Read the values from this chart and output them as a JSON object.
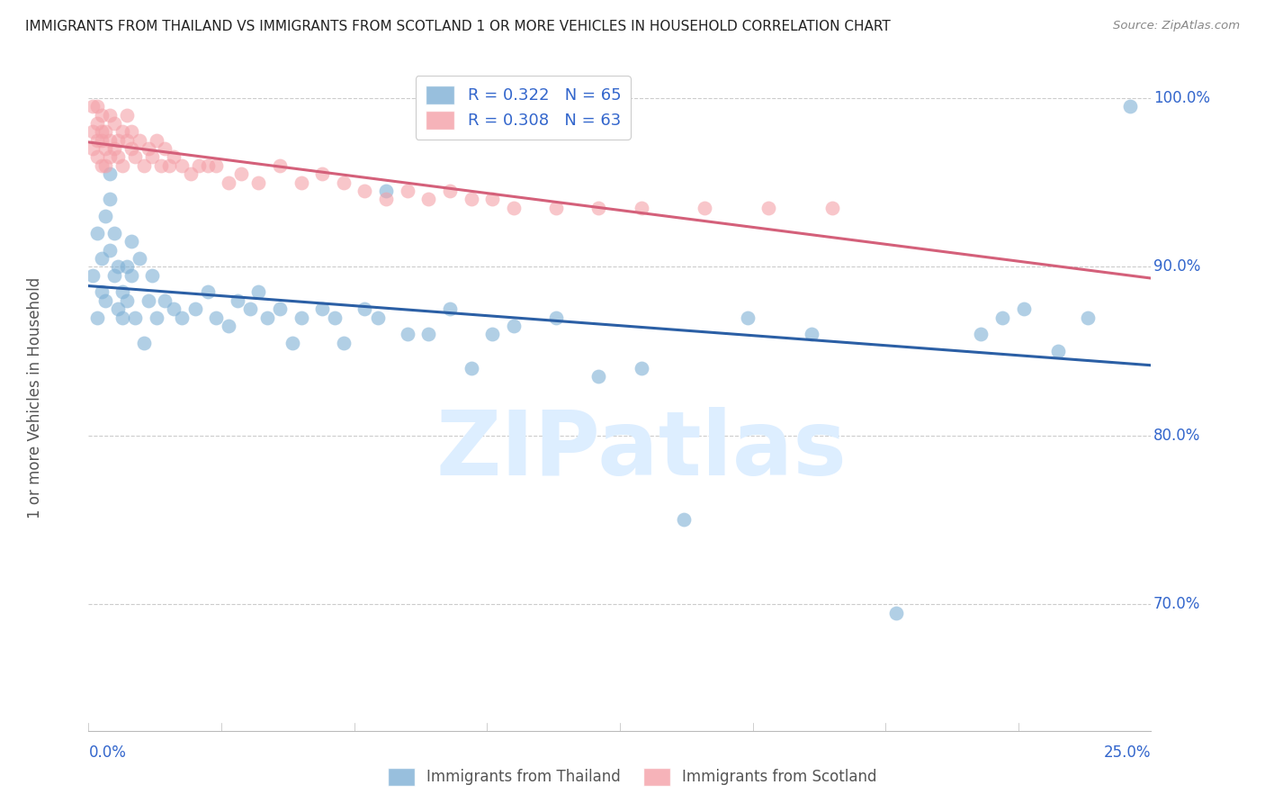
{
  "title": "IMMIGRANTS FROM THAILAND VS IMMIGRANTS FROM SCOTLAND 1 OR MORE VEHICLES IN HOUSEHOLD CORRELATION CHART",
  "source": "Source: ZipAtlas.com",
  "ylabel": "1 or more Vehicles in Household",
  "legend_thailand": "Immigrants from Thailand",
  "legend_scotland": "Immigrants from Scotland",
  "R_thailand": 0.322,
  "N_thailand": 65,
  "R_scotland": 0.308,
  "N_scotland": 63,
  "color_thailand": "#7EB0D5",
  "color_scotland": "#F4A0A8",
  "color_trend_thailand": "#2B5FA5",
  "color_trend_scotland": "#D4607A",
  "color_axis_labels": "#3366CC",
  "color_grid": "#CCCCCC",
  "watermark_color": "#DDEEFF",
  "xlim": [
    0.0,
    0.25
  ],
  "ylim": [
    0.625,
    1.02
  ],
  "yticks": [
    0.7,
    0.8,
    0.9,
    1.0
  ],
  "ytick_labels": [
    "70.0%",
    "80.0%",
    "90.0%",
    "100.0%"
  ],
  "th_x": [
    0.001,
    0.002,
    0.002,
    0.003,
    0.003,
    0.004,
    0.004,
    0.005,
    0.005,
    0.005,
    0.006,
    0.006,
    0.007,
    0.007,
    0.008,
    0.008,
    0.009,
    0.009,
    0.01,
    0.01,
    0.011,
    0.012,
    0.013,
    0.014,
    0.015,
    0.016,
    0.018,
    0.02,
    0.022,
    0.025,
    0.028,
    0.03,
    0.033,
    0.035,
    0.038,
    0.04,
    0.042,
    0.045,
    0.048,
    0.05,
    0.055,
    0.058,
    0.06,
    0.065,
    0.068,
    0.07,
    0.075,
    0.08,
    0.085,
    0.09,
    0.095,
    0.1,
    0.11,
    0.12,
    0.13,
    0.14,
    0.155,
    0.17,
    0.19,
    0.21,
    0.215,
    0.22,
    0.228,
    0.235,
    0.245
  ],
  "th_y": [
    0.895,
    0.92,
    0.87,
    0.905,
    0.885,
    0.93,
    0.88,
    0.955,
    0.94,
    0.91,
    0.92,
    0.895,
    0.875,
    0.9,
    0.885,
    0.87,
    0.9,
    0.88,
    0.895,
    0.915,
    0.87,
    0.905,
    0.855,
    0.88,
    0.895,
    0.87,
    0.88,
    0.875,
    0.87,
    0.875,
    0.885,
    0.87,
    0.865,
    0.88,
    0.875,
    0.885,
    0.87,
    0.875,
    0.855,
    0.87,
    0.875,
    0.87,
    0.855,
    0.875,
    0.87,
    0.945,
    0.86,
    0.86,
    0.875,
    0.84,
    0.86,
    0.865,
    0.87,
    0.835,
    0.84,
    0.75,
    0.87,
    0.86,
    0.695,
    0.86,
    0.87,
    0.875,
    0.85,
    0.87,
    0.995
  ],
  "sc_x": [
    0.001,
    0.001,
    0.001,
    0.002,
    0.002,
    0.002,
    0.002,
    0.003,
    0.003,
    0.003,
    0.003,
    0.004,
    0.004,
    0.004,
    0.005,
    0.005,
    0.005,
    0.006,
    0.006,
    0.007,
    0.007,
    0.008,
    0.008,
    0.009,
    0.009,
    0.01,
    0.01,
    0.011,
    0.012,
    0.013,
    0.014,
    0.015,
    0.016,
    0.017,
    0.018,
    0.019,
    0.02,
    0.022,
    0.024,
    0.026,
    0.028,
    0.03,
    0.033,
    0.036,
    0.04,
    0.045,
    0.05,
    0.055,
    0.06,
    0.065,
    0.07,
    0.075,
    0.08,
    0.085,
    0.09,
    0.095,
    0.1,
    0.11,
    0.12,
    0.13,
    0.145,
    0.16,
    0.175
  ],
  "sc_y": [
    0.98,
    0.995,
    0.97,
    0.985,
    0.975,
    0.965,
    0.995,
    0.975,
    0.96,
    0.99,
    0.98,
    0.97,
    0.96,
    0.98,
    0.975,
    0.965,
    0.99,
    0.97,
    0.985,
    0.975,
    0.965,
    0.98,
    0.96,
    0.975,
    0.99,
    0.97,
    0.98,
    0.965,
    0.975,
    0.96,
    0.97,
    0.965,
    0.975,
    0.96,
    0.97,
    0.96,
    0.965,
    0.96,
    0.955,
    0.96,
    0.96,
    0.96,
    0.95,
    0.955,
    0.95,
    0.96,
    0.95,
    0.955,
    0.95,
    0.945,
    0.94,
    0.945,
    0.94,
    0.945,
    0.94,
    0.94,
    0.935,
    0.935,
    0.935,
    0.935,
    0.935,
    0.935,
    0.935
  ]
}
